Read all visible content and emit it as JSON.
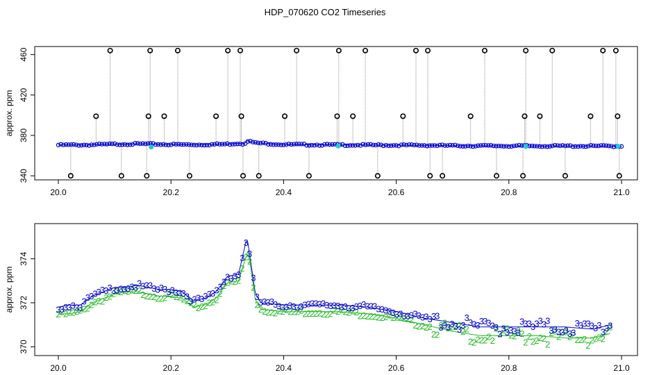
{
  "title": "HDP_070620  CO2 Timeseries",
  "colors": {
    "spike_stem": "#8c8c8c",
    "spike_circle": "#000000",
    "series_blue": "#0000cc",
    "series_green": "#22bb22",
    "cyan": "#22cccc"
  },
  "chart_data": [
    {
      "type": "scatter",
      "ylabel": "approx. ppm",
      "xlim": [
        20.0,
        21.0
      ],
      "ylim": [
        336,
        468
      ],
      "x_ticks": [
        "20.0",
        "20.2",
        "20.4",
        "20.6",
        "20.8",
        "21.0"
      ],
      "y_ticks": [
        "340",
        "380",
        "420",
        "460"
      ],
      "baseline": [
        [
          20.0,
          370.5
        ],
        [
          20.05,
          370.6
        ],
        [
          20.1,
          371.3
        ],
        [
          20.15,
          371.6
        ],
        [
          20.2,
          371.0
        ],
        [
          20.25,
          370.8
        ],
        [
          20.3,
          371.4
        ],
        [
          20.32,
          372.2
        ],
        [
          20.33,
          371.6
        ],
        [
          20.335,
          374.8
        ],
        [
          20.35,
          372.6
        ],
        [
          20.4,
          371.0
        ],
        [
          20.5,
          370.6
        ],
        [
          20.6,
          370.3
        ],
        [
          20.66,
          370.2
        ],
        [
          20.7,
          369.8
        ],
        [
          20.8,
          369.6
        ],
        [
          20.9,
          369.5
        ],
        [
          21.0,
          369.4
        ]
      ],
      "spikes": [
        [
          20.022,
          340
        ],
        [
          20.067,
          399
        ],
        [
          20.092,
          464
        ],
        [
          20.112,
          340
        ],
        [
          20.157,
          340
        ],
        [
          20.16,
          399
        ],
        [
          20.163,
          464
        ],
        [
          20.188,
          399
        ],
        [
          20.212,
          464
        ],
        [
          20.233,
          340
        ],
        [
          20.28,
          399
        ],
        [
          20.301,
          464
        ],
        [
          20.323,
          464
        ],
        [
          20.325,
          399
        ],
        [
          20.328,
          340
        ],
        [
          20.356,
          340
        ],
        [
          20.402,
          399
        ],
        [
          20.423,
          464
        ],
        [
          20.445,
          340
        ],
        [
          20.495,
          399
        ],
        [
          20.498,
          464
        ],
        [
          20.523,
          399
        ],
        [
          20.545,
          464
        ],
        [
          20.567,
          340
        ],
        [
          20.612,
          399
        ],
        [
          20.635,
          464
        ],
        [
          20.656,
          464
        ],
        [
          20.66,
          340
        ],
        [
          20.682,
          340
        ],
        [
          20.732,
          399
        ],
        [
          20.757,
          464
        ],
        [
          20.778,
          340
        ],
        [
          20.825,
          340
        ],
        [
          20.828,
          399
        ],
        [
          20.83,
          464
        ],
        [
          20.855,
          399
        ],
        [
          20.877,
          464
        ],
        [
          20.9,
          340
        ],
        [
          20.945,
          399
        ],
        [
          20.967,
          464
        ],
        [
          20.99,
          464
        ],
        [
          20.993,
          399
        ],
        [
          20.996,
          340
        ]
      ],
      "cyan_points": [
        [
          20.165,
          368.5
        ],
        [
          20.497,
          369.5
        ],
        [
          20.83,
          369.0
        ],
        [
          20.994,
          369.3
        ]
      ]
    },
    {
      "type": "line",
      "ylabel": "approx. ppm",
      "xlim": [
        20.0,
        21.0
      ],
      "ylim": [
        369.6,
        375.6
      ],
      "x_ticks": [
        "20.0",
        "20.2",
        "20.4",
        "20.6",
        "20.8",
        "21.0"
      ],
      "y_ticks": [
        "370",
        "372",
        "374"
      ],
      "series": [
        {
          "marker": "3",
          "color": "blue",
          "values": [
            [
              20.0,
              371.8
            ],
            [
              20.02,
              371.9
            ],
            [
              20.04,
              371.9
            ],
            [
              20.06,
              372.3
            ],
            [
              20.08,
              372.5
            ],
            [
              20.1,
              372.7
            ],
            [
              20.12,
              372.7
            ],
            [
              20.14,
              372.8
            ],
            [
              20.16,
              372.7
            ],
            [
              20.18,
              372.6
            ],
            [
              20.2,
              372.6
            ],
            [
              20.22,
              372.5
            ],
            [
              20.24,
              372.1
            ],
            [
              20.26,
              372.2
            ],
            [
              20.28,
              372.5
            ],
            [
              20.3,
              373.2
            ],
            [
              20.32,
              373.3
            ],
            [
              20.335,
              375.0
            ],
            [
              20.35,
              372.4
            ],
            [
              20.36,
              372.0
            ],
            [
              20.4,
              371.9
            ],
            [
              20.45,
              371.9
            ],
            [
              20.5,
              371.9
            ],
            [
              20.55,
              371.8
            ],
            [
              20.6,
              371.6
            ],
            [
              20.65,
              371.3
            ],
            [
              20.7,
              371.1
            ],
            [
              20.75,
              370.9
            ],
            [
              20.8,
              370.9
            ],
            [
              20.85,
              370.9
            ],
            [
              20.9,
              370.9
            ],
            [
              20.95,
              370.8
            ],
            [
              20.98,
              371.0
            ]
          ]
        },
        {
          "marker": "2",
          "color": "green",
          "values": [
            [
              20.0,
              371.5
            ],
            [
              20.02,
              371.5
            ],
            [
              20.04,
              371.6
            ],
            [
              20.06,
              372.0
            ],
            [
              20.08,
              372.2
            ],
            [
              20.1,
              372.4
            ],
            [
              20.12,
              372.5
            ],
            [
              20.14,
              372.5
            ],
            [
              20.16,
              372.4
            ],
            [
              20.18,
              372.3
            ],
            [
              20.2,
              372.3
            ],
            [
              20.22,
              372.2
            ],
            [
              20.24,
              371.8
            ],
            [
              20.26,
              371.9
            ],
            [
              20.28,
              372.2
            ],
            [
              20.3,
              372.9
            ],
            [
              20.32,
              373.0
            ],
            [
              20.337,
              374.4
            ],
            [
              20.35,
              372.1
            ],
            [
              20.36,
              371.7
            ],
            [
              20.4,
              371.6
            ],
            [
              20.45,
              371.6
            ],
            [
              20.5,
              371.6
            ],
            [
              20.55,
              371.5
            ],
            [
              20.6,
              371.3
            ],
            [
              20.65,
              371.0
            ],
            [
              20.7,
              370.7
            ],
            [
              20.75,
              370.5
            ],
            [
              20.8,
              370.5
            ],
            [
              20.85,
              370.5
            ],
            [
              20.9,
              370.4
            ],
            [
              20.95,
              370.4
            ],
            [
              20.98,
              370.6
            ]
          ]
        }
      ]
    }
  ]
}
